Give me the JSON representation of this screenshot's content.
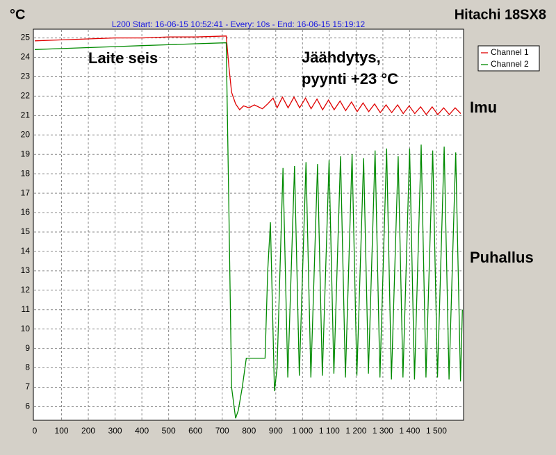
{
  "chart_data": {
    "type": "line",
    "title": "Hitachi 18SX8",
    "subtitle": "L200 Start: 16-06-15 10:52:41 -  Every: 10s - End: 16-06-15 15:19:12",
    "y_label": "°C",
    "annotations": [
      "Laite seis",
      "Jäähdytys,",
      "pyynti +23 °C",
      "Imu",
      "Puhallus"
    ],
    "xlim": [
      0,
      1600
    ],
    "ylim": [
      5.3,
      25.45
    ],
    "xticks": [
      0,
      100,
      200,
      300,
      400,
      500,
      600,
      700,
      800,
      900,
      {
        "value": 1000,
        "label": "1 000"
      },
      {
        "value": 1100,
        "label": "1 100"
      },
      {
        "value": 1200,
        "label": "1 200"
      },
      {
        "value": 1300,
        "label": "1 300"
      },
      {
        "value": 1400,
        "label": "1 400"
      },
      {
        "value": 1500,
        "label": "1 500"
      }
    ],
    "yticks": [
      6,
      7,
      8,
      9,
      10,
      11,
      12,
      13,
      14,
      15,
      16,
      17,
      18,
      19,
      20,
      21,
      22,
      23,
      24,
      25
    ],
    "grid": true,
    "legend": "top-right",
    "series": [
      {
        "name": "Channel 1",
        "color": "#e00000",
        "x": [
          0,
          100,
          200,
          300,
          400,
          500,
          600,
          715,
          725,
          735,
          750,
          765,
          780,
          800,
          820,
          850,
          870,
          890,
          905,
          925,
          946,
          968,
          989,
          1011,
          1032,
          1054,
          1075,
          1097,
          1118,
          1140,
          1161,
          1183,
          1204,
          1226,
          1247,
          1269,
          1290,
          1312,
          1333,
          1355,
          1376,
          1398,
          1419,
          1441,
          1462,
          1484,
          1505,
          1527,
          1548,
          1570,
          1591
        ],
        "values": [
          24.85,
          24.9,
          24.95,
          25.0,
          25.0,
          25.05,
          25.05,
          25.1,
          23.5,
          22.2,
          21.6,
          21.3,
          21.5,
          21.4,
          21.55,
          21.35,
          21.6,
          21.9,
          21.4,
          21.95,
          21.4,
          21.95,
          21.4,
          21.9,
          21.35,
          21.85,
          21.3,
          21.8,
          21.3,
          21.75,
          21.25,
          21.7,
          21.2,
          21.65,
          21.2,
          21.6,
          21.15,
          21.55,
          21.15,
          21.55,
          21.1,
          21.5,
          21.1,
          21.45,
          21.05,
          21.45,
          21.05,
          21.4,
          21.05,
          21.4,
          21.1
        ]
      },
      {
        "name": "Channel 2",
        "color": "#008a00",
        "x": [
          0,
          100,
          200,
          300,
          400,
          500,
          600,
          715,
          725,
          735,
          750,
          760,
          775,
          790,
          860,
          870,
          880,
          895,
          905,
          927,
          945,
          970,
          988,
          1013,
          1031,
          1056,
          1074,
          1099,
          1117,
          1142,
          1160,
          1185,
          1203,
          1228,
          1246,
          1271,
          1289,
          1314,
          1332,
          1357,
          1375,
          1400,
          1418,
          1443,
          1461,
          1486,
          1504,
          1529,
          1547,
          1572,
          1590,
          1597
        ],
        "values": [
          24.4,
          24.45,
          24.5,
          24.55,
          24.6,
          24.65,
          24.7,
          24.75,
          16,
          7,
          5.4,
          5.8,
          7,
          8.5,
          8.5,
          13,
          15.5,
          6.8,
          8,
          18.3,
          7.5,
          18.4,
          7.6,
          18.6,
          7.5,
          18.5,
          7.6,
          18.7,
          7.7,
          18.9,
          7.5,
          19.0,
          7.6,
          18.8,
          7.7,
          19.2,
          7.5,
          19.3,
          7.4,
          18.9,
          7.5,
          19.3,
          7.4,
          19.5,
          7.5,
          19.2,
          7.5,
          19.4,
          7.4,
          19.1,
          7.3,
          11
        ]
      }
    ]
  }
}
